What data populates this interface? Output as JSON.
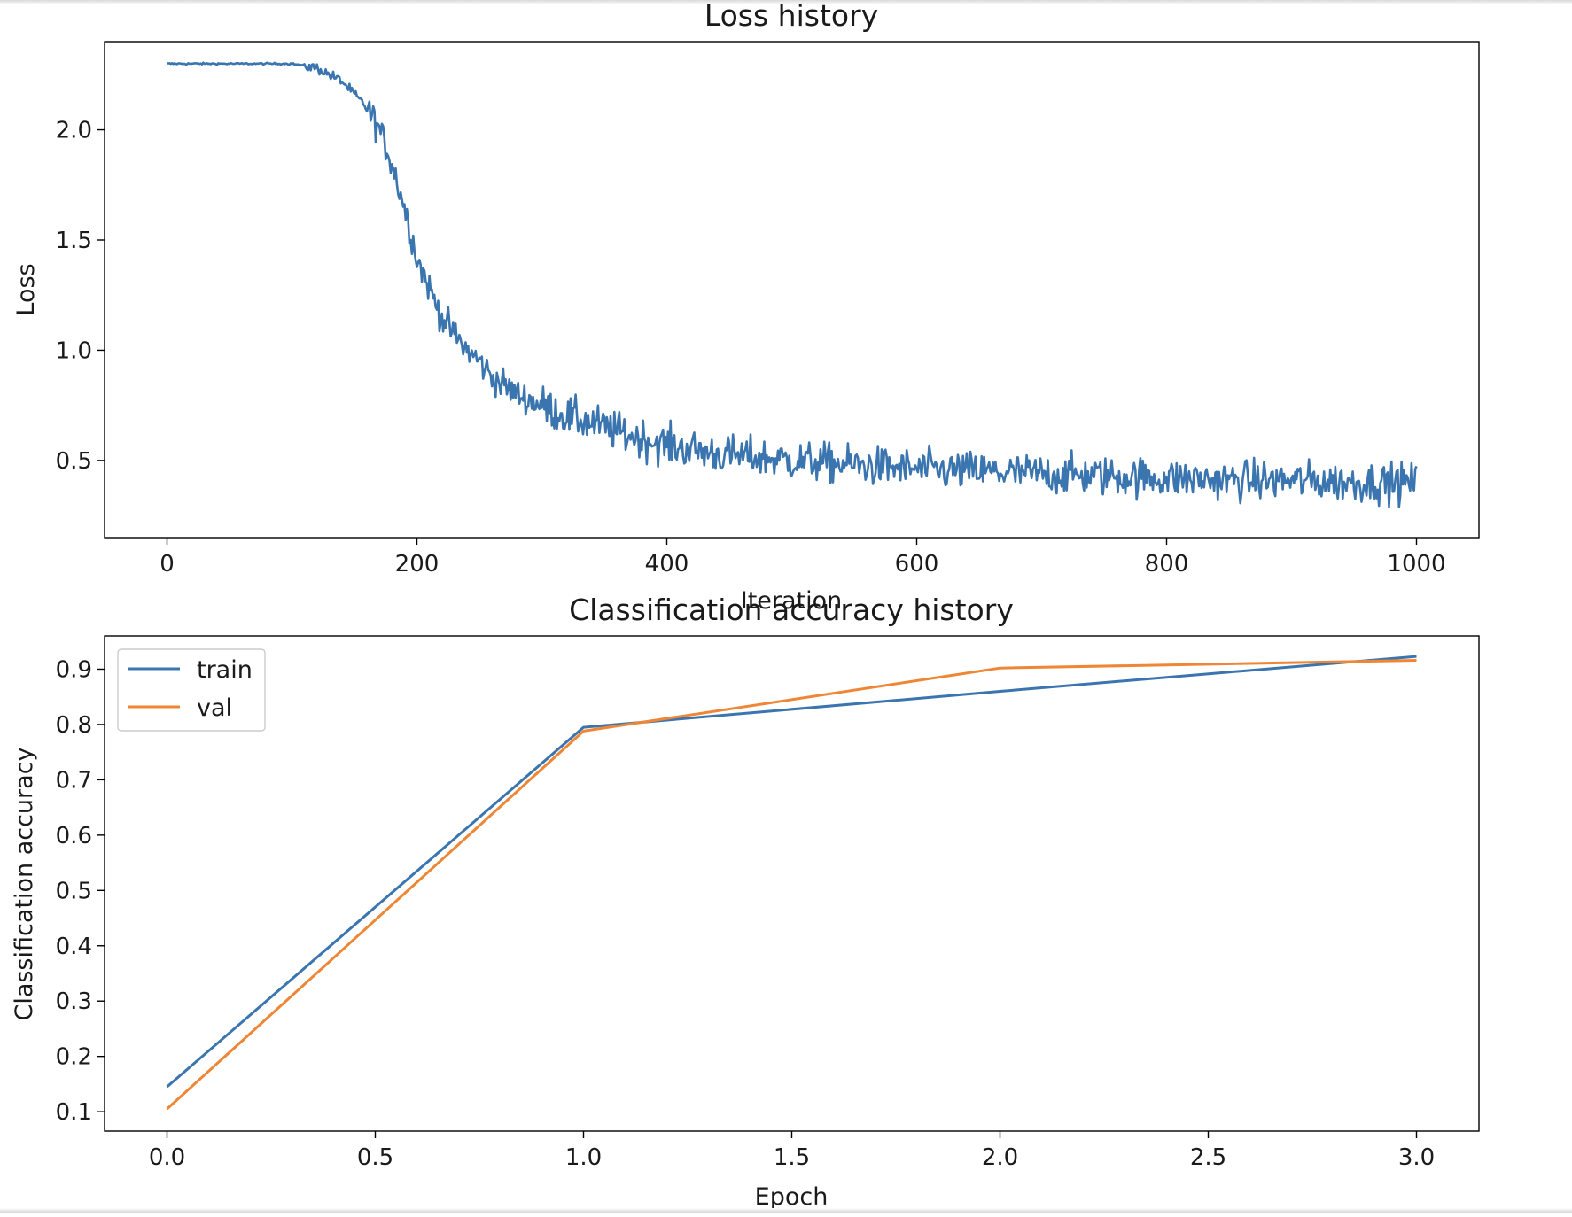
{
  "colors": {
    "train": "#3b75af",
    "val": "#ef8636",
    "loss": "#3b75af"
  },
  "chart_data": [
    {
      "type": "line",
      "title": "Loss history",
      "xlabel": "Iteration",
      "ylabel": "Loss",
      "xlim": [
        -50,
        1050
      ],
      "ylim": [
        0.15,
        2.4
      ],
      "xticks": [
        0,
        200,
        400,
        600,
        800,
        1000
      ],
      "xtick_labels": [
        "0",
        "200",
        "400",
        "600",
        "800",
        "1000"
      ],
      "yticks": [
        0.5,
        1.0,
        1.5,
        2.0
      ],
      "ytick_labels": [
        "0.5",
        "1.0",
        "1.5",
        "2.0"
      ],
      "grid": false,
      "legend": null,
      "series": [
        {
          "name": "",
          "x": [
            0,
            50,
            100,
            120,
            140,
            160,
            170,
            180,
            190,
            200,
            210,
            220,
            230,
            240,
            250,
            260,
            280,
            300,
            320,
            340,
            360,
            380,
            400,
            420,
            440,
            460,
            480,
            500,
            550,
            600,
            650,
            700,
            750,
            800,
            850,
            900,
            950,
            1000
          ],
          "y": [
            2.3,
            2.3,
            2.3,
            2.28,
            2.22,
            2.1,
            2.0,
            1.85,
            1.65,
            1.42,
            1.28,
            1.15,
            1.07,
            1.0,
            0.95,
            0.88,
            0.8,
            0.75,
            0.7,
            0.67,
            0.63,
            0.6,
            0.57,
            0.55,
            0.53,
            0.52,
            0.51,
            0.5,
            0.48,
            0.46,
            0.45,
            0.44,
            0.43,
            0.42,
            0.41,
            0.41,
            0.4,
            0.4
          ]
        }
      ]
    },
    {
      "type": "line",
      "title": "Classification accuracy history",
      "xlabel": "Epoch",
      "ylabel": "Classification accuracy",
      "xlim": [
        -0.15,
        3.15
      ],
      "ylim": [
        0.065,
        0.96
      ],
      "xticks": [
        0.0,
        0.5,
        1.0,
        1.5,
        2.0,
        2.5,
        3.0
      ],
      "xtick_labels": [
        "0.0",
        "0.5",
        "1.0",
        "1.5",
        "2.0",
        "2.5",
        "3.0"
      ],
      "yticks": [
        0.1,
        0.2,
        0.3,
        0.4,
        0.5,
        0.6,
        0.7,
        0.8,
        0.9
      ],
      "ytick_labels": [
        "0.1",
        "0.2",
        "0.3",
        "0.4",
        "0.5",
        "0.6",
        "0.7",
        "0.8",
        "0.9"
      ],
      "grid": false,
      "legend": "top-left",
      "series": [
        {
          "name": "train",
          "x": [
            0,
            1,
            2,
            3
          ],
          "y": [
            0.145,
            0.795,
            0.86,
            0.923
          ]
        },
        {
          "name": "val",
          "x": [
            0,
            1,
            2,
            3
          ],
          "y": [
            0.105,
            0.788,
            0.902,
            0.916
          ]
        }
      ]
    }
  ]
}
